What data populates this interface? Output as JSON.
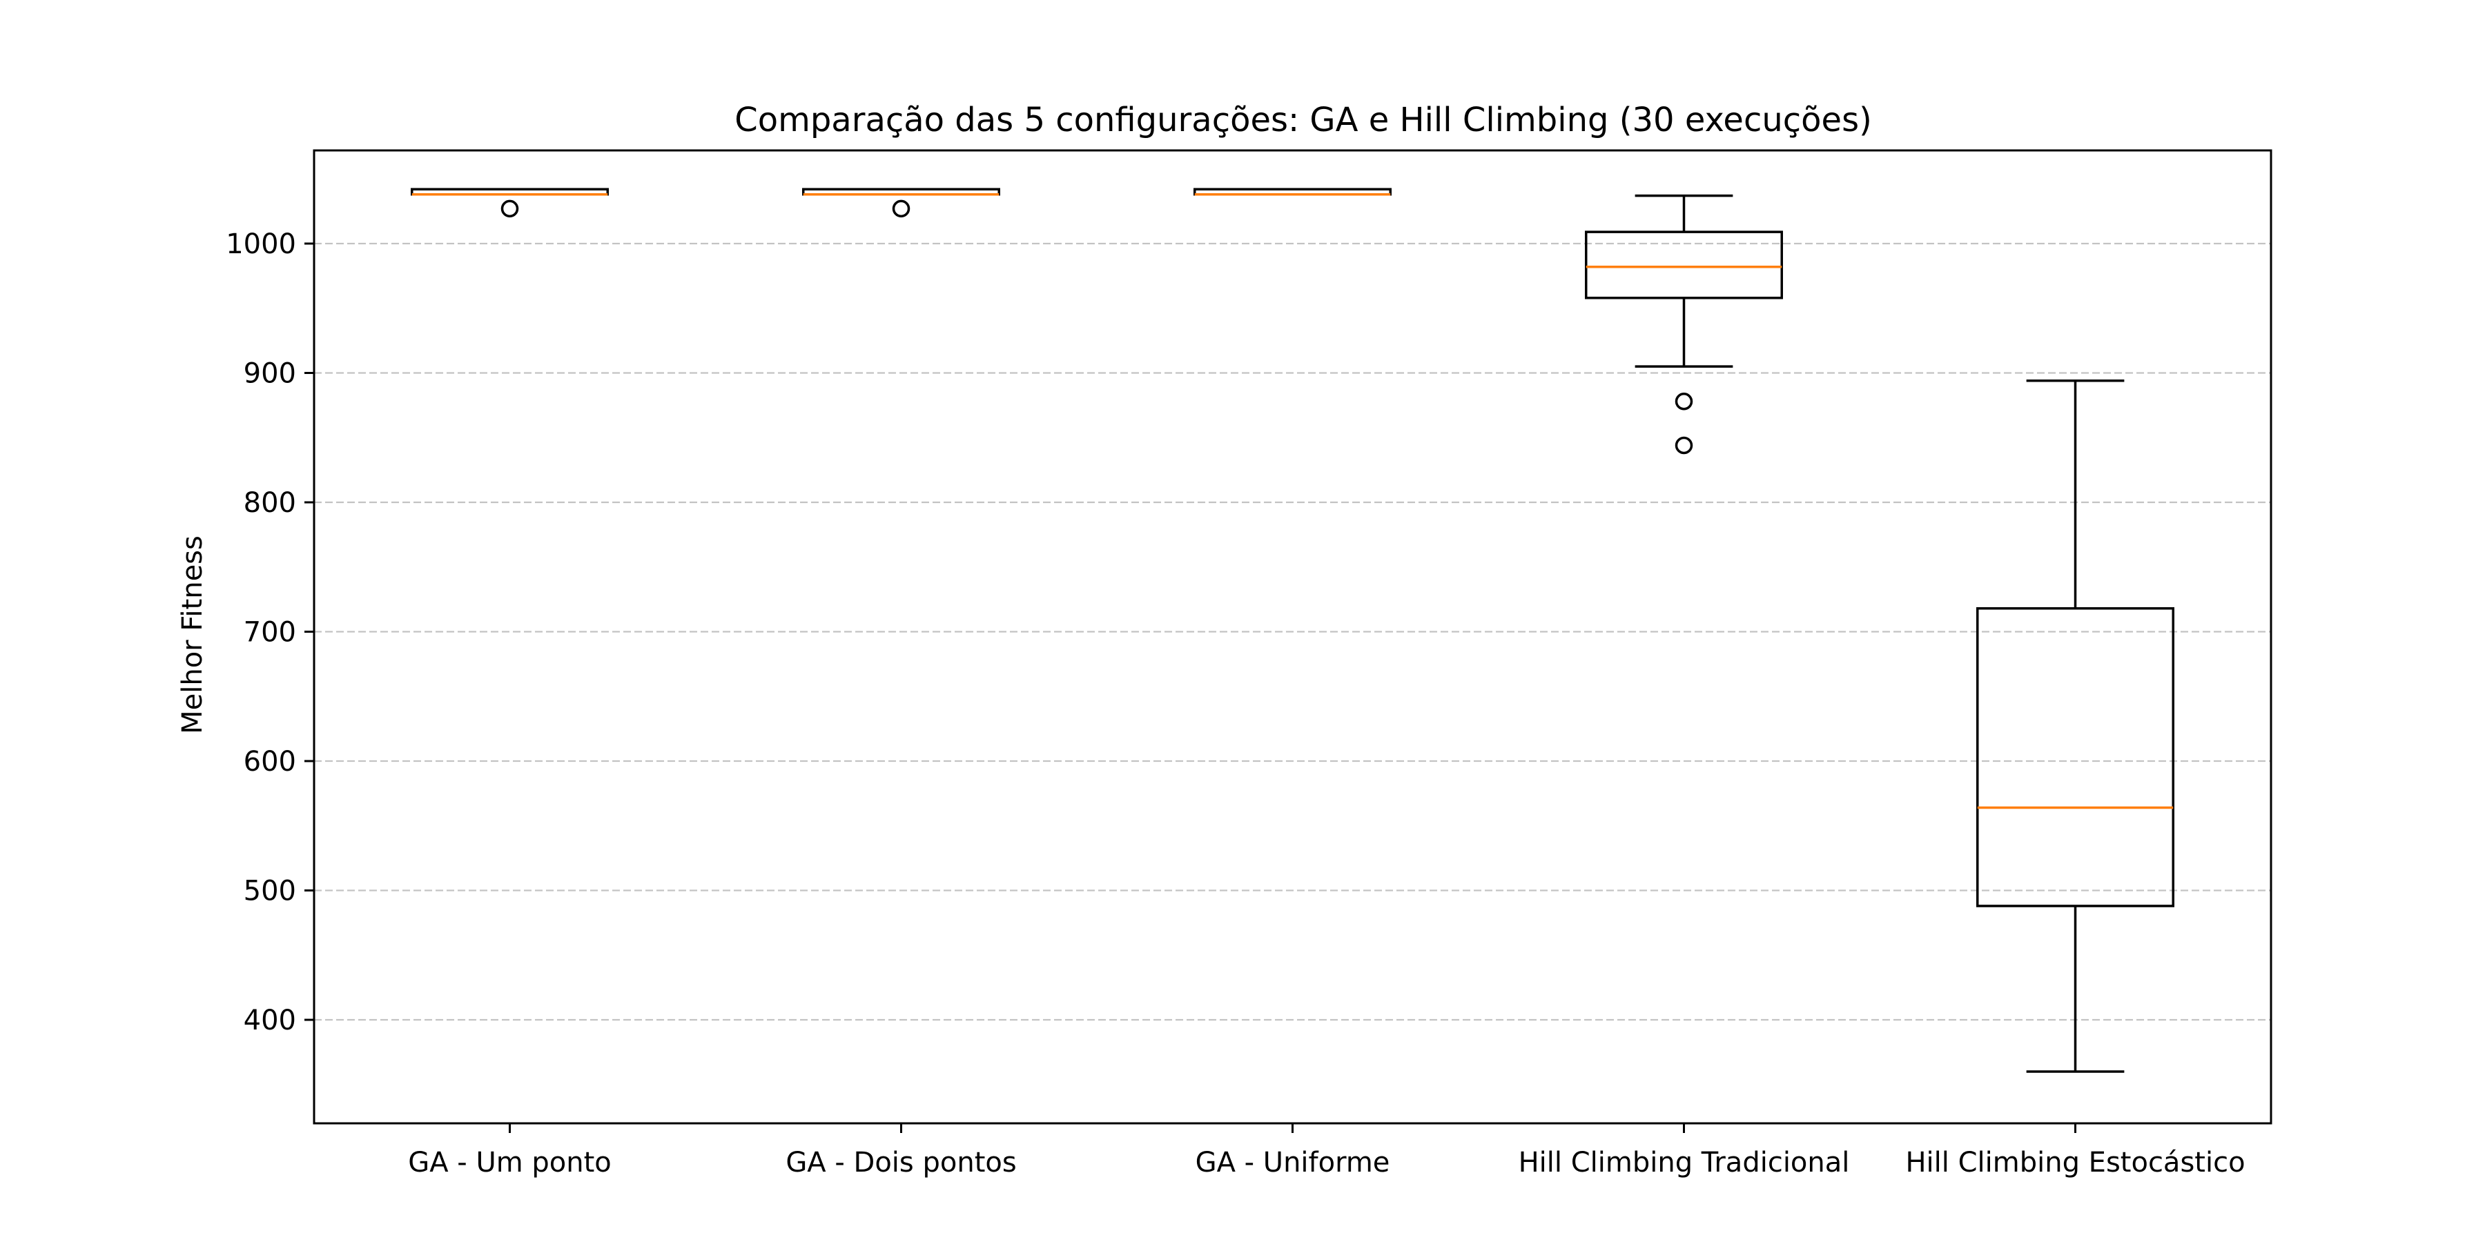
{
  "chart_data": {
    "type": "boxplot",
    "title": "Comparação das 5 configurações: GA e Hill Climbing (30 execuções)",
    "xlabel": "",
    "ylabel": "Melhor Fitness",
    "ylim": [
      320,
      1072
    ],
    "yticks": [
      400,
      500,
      600,
      700,
      800,
      900,
      1000
    ],
    "grid": {
      "axis": "y",
      "style": "dashed"
    },
    "colors": {
      "box": "#000000",
      "median": "#ff7f0e",
      "grid": "#b0b0b0",
      "flier": "#000000"
    },
    "categories": [
      "GA - Um ponto",
      "GA - Dois pontos",
      "GA - Uniforme",
      "Hill Climbing Tradicional",
      "Hill Climbing Estocástico"
    ],
    "boxes": [
      {
        "whislo": 1038,
        "q1": 1038,
        "med": 1038,
        "q3": 1042,
        "whishi": 1042,
        "fliers": [
          1027
        ]
      },
      {
        "whislo": 1038,
        "q1": 1038,
        "med": 1038,
        "q3": 1042,
        "whishi": 1042,
        "fliers": [
          1027
        ]
      },
      {
        "whislo": 1038,
        "q1": 1038,
        "med": 1038,
        "q3": 1042,
        "whishi": 1042,
        "fliers": []
      },
      {
        "whislo": 905,
        "q1": 958,
        "med": 982,
        "q3": 1009,
        "whishi": 1037,
        "fliers": [
          878,
          844
        ]
      },
      {
        "whislo": 360,
        "q1": 488,
        "med": 564,
        "q3": 718,
        "whishi": 894,
        "fliers": []
      }
    ]
  }
}
